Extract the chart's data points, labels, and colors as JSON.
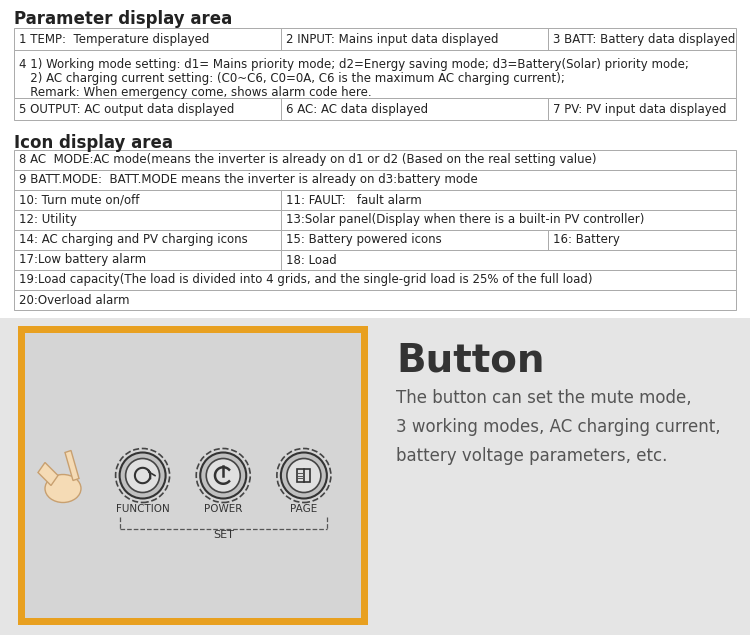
{
  "title1": "Parameter display area",
  "title2": "Icon display area",
  "button_section": {
    "title": "Button",
    "desc": "The button can set the mute mode,\n3 working modes, AC charging current,\nbattery voltage parameters, etc.",
    "border_color": "#E8A020",
    "labels": [
      "FUNCTION",
      "POWER",
      "PAGE"
    ],
    "set_label": "SET"
  },
  "table_border_color": "#aaaaaa",
  "text_color": "#222222",
  "title_fontsize": 12,
  "cell_fontsize": 8.5,
  "col_splits_3": [
    0.37,
    0.37,
    0.26
  ],
  "col_splits_2": [
    0.37,
    0.63
  ],
  "col_splits_icon3": [
    0.37,
    0.37,
    0.26
  ]
}
